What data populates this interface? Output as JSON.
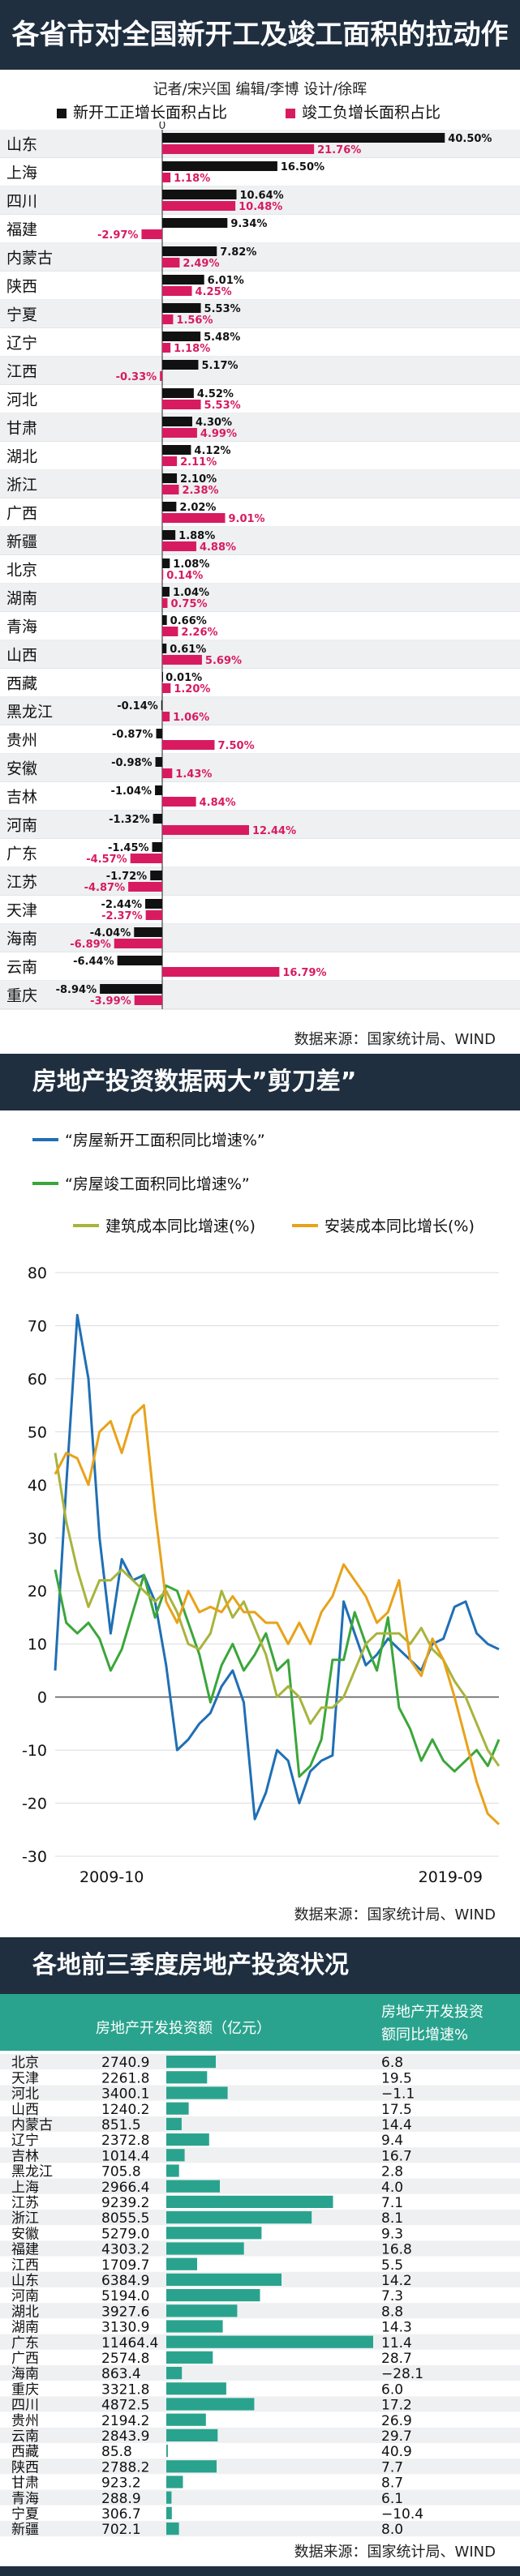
{
  "section1": {
    "title": "各省市对全国新开工及竣工面积的拉动作用",
    "byline": "记者/宋兴国  编辑/李博  设计/徐晖",
    "legend_new": "新开工正增长面积占比",
    "legend_done": "竣工负增长面积占比",
    "source": "数据来源：国家统计局、WIND"
  },
  "section2": {
    "title": "房地产投资数据两大”剪刀差”",
    "source": "数据来源：国家统计局、WIND",
    "x_start": "2009-10",
    "x_end": "2019-09"
  },
  "section3": {
    "title": "各地前三季度房地产投资状况",
    "col1": "房地产开发投资额（亿元）",
    "col2_line1": "房地产开发投资",
    "col2_line2": "额同比增速%",
    "source": "数据来源：国家统计局、WIND"
  },
  "colors": {
    "black": "#111111",
    "pink": "#d81b60",
    "blue": "#1f6fb5",
    "green": "#3aa63a",
    "olive": "#a8b43c",
    "orange": "#e8a21a",
    "teal": "#2aa38e",
    "header": "#1f2f40"
  },
  "chart_data": [
    {
      "type": "bar",
      "title": "各省市对全国新开工及竣工面积的拉动作用",
      "categories": [
        "山东",
        "上海",
        "四川",
        "福建",
        "内蒙古",
        "陕西",
        "宁夏",
        "辽宁",
        "江西",
        "河北",
        "甘肃",
        "湖北",
        "浙江",
        "广西",
        "新疆",
        "北京",
        "湖南",
        "青海",
        "山西",
        "西藏",
        "黑龙江",
        "贵州",
        "安徽",
        "吉林",
        "河南",
        "广东",
        "江苏",
        "天津",
        "海南",
        "云南",
        "重庆"
      ],
      "series": [
        {
          "name": "新开工正增长面积占比",
          "values": [
            40.5,
            16.5,
            10.64,
            9.34,
            7.82,
            6.01,
            5.53,
            5.48,
            5.17,
            4.52,
            4.3,
            4.12,
            2.1,
            2.02,
            1.88,
            1.08,
            1.04,
            0.66,
            0.61,
            0.01,
            -0.14,
            -0.87,
            -0.98,
            -1.04,
            -1.32,
            -1.45,
            -1.72,
            -2.44,
            -4.04,
            -6.44,
            -8.94
          ],
          "labels": [
            "40.50%",
            "16.50%",
            "10.64%",
            "9.34%",
            "7.82%",
            "6.01%",
            "5.53%",
            "5.48%",
            "5.17%",
            "4.52%",
            "4.30%",
            "4.12%",
            "2.10%",
            "2.02%",
            "1.88%",
            "1.08%",
            "1.04%",
            "0.66%",
            "0.61%",
            "0.01%",
            "-0.14%",
            "-0.87%",
            "-0.98%",
            "-1.04%",
            "-1.32%",
            "-1.45%",
            "-1.72%",
            "-2.44%",
            "-4.04%",
            "-6.44%",
            "-8.94%"
          ]
        },
        {
          "name": "竣工负增长面积占比",
          "values": [
            21.76,
            1.18,
            10.48,
            -2.97,
            2.49,
            4.25,
            1.56,
            1.18,
            -0.33,
            5.53,
            4.99,
            2.11,
            2.38,
            9.01,
            4.88,
            0.14,
            0.75,
            2.26,
            5.69,
            1.2,
            1.06,
            7.5,
            1.43,
            4.84,
            12.44,
            -4.57,
            -4.87,
            -2.37,
            -6.89,
            16.79,
            -3.99
          ],
          "labels": [
            "21.76%",
            "1.18%",
            "10.48%",
            "-2.97%",
            "2.49%",
            "4.25%",
            "1.56%",
            "1.18%",
            "-0.33%",
            "5.53%",
            "4.99%",
            "2.11%",
            "2.38%",
            "9.01%",
            "4.88%",
            "0.14%",
            "0.75%",
            "2.26%",
            "5.69%",
            "1.20%",
            "1.06%",
            "7.50%",
            "1.43%",
            "4.84%",
            "12.44%",
            "-4.57%",
            "-4.87%",
            "-2.37%",
            "-6.89%",
            "16.79%",
            "-3.99%"
          ]
        }
      ]
    },
    {
      "type": "line",
      "title": "房地产投资数据两大”剪刀差”",
      "x": [
        "2009-10",
        "2009-12",
        "2010-03",
        "2010-06",
        "2010-09",
        "2010-12",
        "2011-03",
        "2011-06",
        "2011-09",
        "2011-12",
        "2012-03",
        "2012-06",
        "2012-09",
        "2012-12",
        "2013-03",
        "2013-06",
        "2013-09",
        "2013-12",
        "2014-03",
        "2014-06",
        "2014-09",
        "2014-12",
        "2015-03",
        "2015-06",
        "2015-09",
        "2015-12",
        "2016-03",
        "2016-06",
        "2016-09",
        "2016-12",
        "2017-03",
        "2017-06",
        "2017-09",
        "2017-12",
        "2018-03",
        "2018-06",
        "2018-09",
        "2018-12",
        "2019-03",
        "2019-06",
        "2019-09"
      ],
      "x_labels": [
        "2009-10",
        "2019-09"
      ],
      "ylim": [
        -30,
        80
      ],
      "yticks": [
        -30,
        -20,
        -10,
        0,
        10,
        20,
        30,
        40,
        50,
        60,
        70,
        80
      ],
      "series": [
        {
          "name": "“房屋新开工面积同比增速%”",
          "values": [
            5,
            40,
            72,
            60,
            30,
            12,
            26,
            22,
            23,
            18,
            6,
            -10,
            -8,
            -5,
            -3,
            2,
            5,
            -1,
            -23,
            -18,
            -10,
            -12,
            -20,
            -14,
            -12,
            -11,
            18,
            12,
            6,
            8,
            11,
            9,
            7,
            5,
            10,
            11,
            17,
            18,
            12,
            10,
            9
          ]
        },
        {
          "name": "“房屋竣工面积同比增速%”",
          "values": [
            24,
            14,
            12,
            14,
            11,
            5,
            9,
            16,
            23,
            15,
            21,
            20,
            14,
            8,
            -1,
            6,
            10,
            5,
            8,
            12,
            5,
            7,
            -15,
            -13,
            -8,
            7,
            7,
            16,
            10,
            5,
            15,
            -2,
            -6,
            -12,
            -8,
            -12,
            -14,
            -12,
            -10,
            -13,
            -8
          ]
        },
        {
          "name": "建筑成本同比增速(%)",
          "values": [
            46,
            33,
            24,
            17,
            22,
            22,
            24,
            22,
            20,
            18,
            20,
            16,
            10,
            9,
            12,
            20,
            15,
            18,
            13,
            8,
            0,
            2,
            0,
            -5,
            -2,
            -2,
            0,
            5,
            10,
            12,
            12,
            12,
            10,
            13,
            9,
            7,
            3,
            0,
            -5,
            -10,
            -13
          ]
        },
        {
          "name": "安装成本同比增长(%)",
          "values": [
            42,
            46,
            45,
            40,
            50,
            52,
            46,
            53,
            55,
            35,
            18,
            14,
            20,
            16,
            17,
            16,
            19,
            16,
            16,
            14,
            14,
            10,
            14,
            10,
            16,
            19,
            25,
            22,
            19,
            14,
            16,
            22,
            7,
            4,
            11,
            7,
            0,
            -8,
            -16,
            -22,
            -24
          ]
        }
      ]
    },
    {
      "type": "table",
      "title": "各地前三季度房地产投资状况",
      "columns": [
        "房地产开发投资额（亿元）",
        "房地产开发投资额同比增速%"
      ],
      "categories": [
        "北京",
        "天津",
        "河北",
        "山西",
        "内蒙古",
        "辽宁",
        "吉林",
        "黑龙江",
        "上海",
        "江苏",
        "浙江",
        "安徽",
        "福建",
        "江西",
        "山东",
        "河南",
        "湖北",
        "湖南",
        "广东",
        "广西",
        "海南",
        "重庆",
        "四川",
        "贵州",
        "云南",
        "西藏",
        "陕西",
        "甘肃",
        "青海",
        "宁夏",
        "新疆"
      ],
      "values": [
        2740.9,
        2261.8,
        3400.1,
        1240.2,
        851.5,
        2372.8,
        1014.4,
        705.8,
        2966.4,
        9239.2,
        8055.5,
        5279.0,
        4303.2,
        1709.7,
        6384.9,
        5194.0,
        3927.6,
        3130.9,
        11464.4,
        2574.8,
        863.4,
        3321.8,
        4872.5,
        2194.2,
        2843.9,
        85.8,
        2788.2,
        923.2,
        288.9,
        306.7,
        702.1
      ],
      "labels": [
        "2740.9",
        "2261.8",
        "3400.1",
        "1240.2",
        "851.5",
        "2372.8",
        "1014.4",
        "705.8",
        "2966.4",
        "9239.2",
        "8055.5",
        "5279.0",
        "4303.2",
        "1709.7",
        "6384.9",
        "5194.0",
        "3927.6",
        "3130.9",
        "11464.4",
        "2574.8",
        "863.4",
        "3321.8",
        "4872.5",
        "2194.2",
        "2843.9",
        "85.8",
        "2788.2",
        "923.2",
        "288.9",
        "306.7",
        "702.1"
      ],
      "growth": [
        "6.8",
        "19.5",
        "−1.1",
        "17.5",
        "14.4",
        "9.4",
        "16.7",
        "2.8",
        "4.0",
        "7.1",
        "8.1",
        "9.3",
        "16.8",
        "5.5",
        "14.2",
        "7.3",
        "8.8",
        "14.3",
        "11.4",
        "28.7",
        "−28.1",
        "6.0",
        "17.2",
        "26.9",
        "29.7",
        "40.9",
        "7.7",
        "8.7",
        "6.1",
        "−10.4",
        "8.0"
      ]
    }
  ]
}
